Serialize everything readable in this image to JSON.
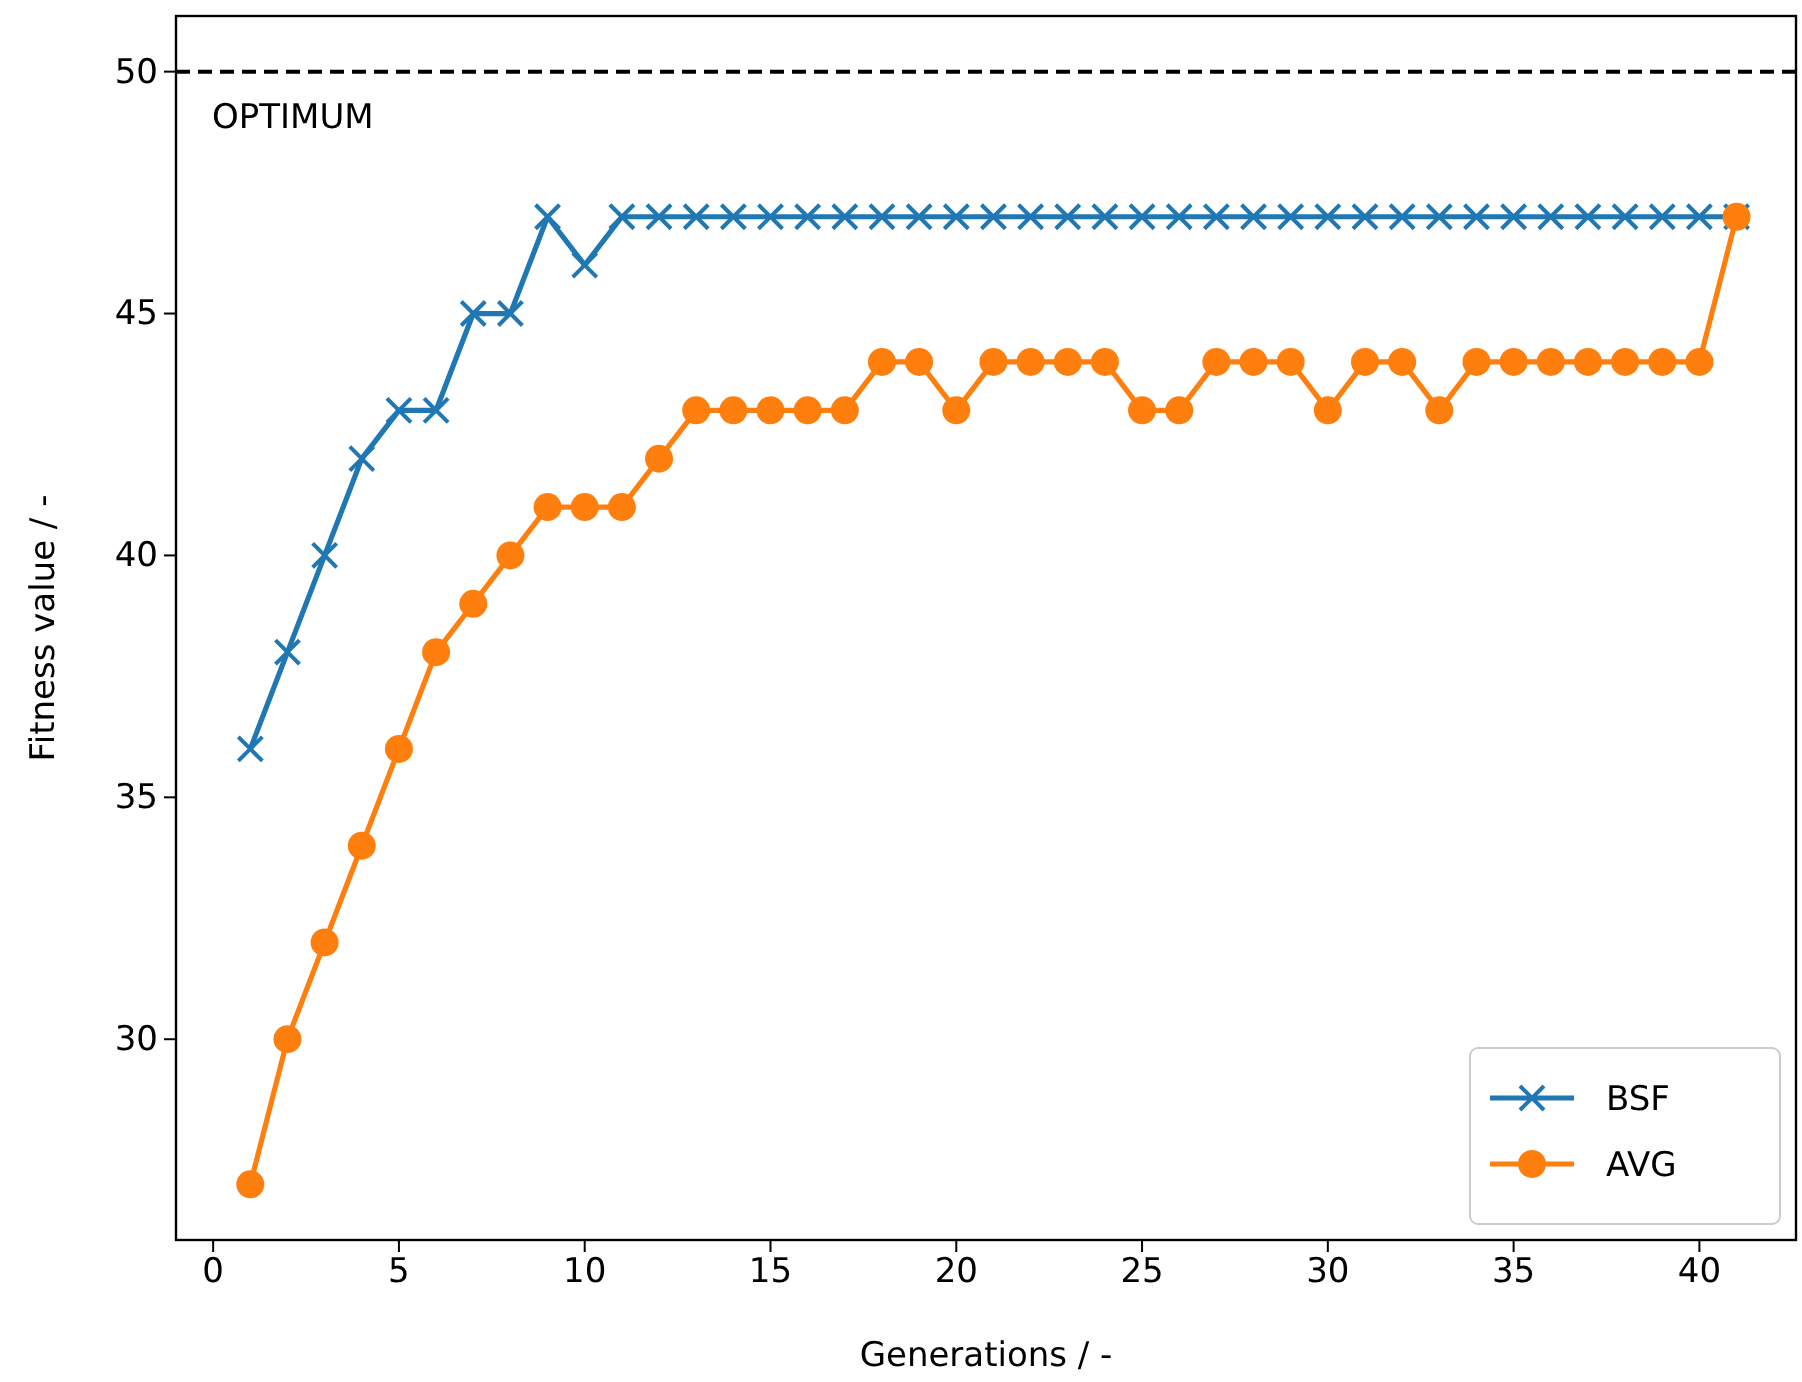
{
  "chart_data": {
    "type": "line",
    "xlabel": "Generations / -",
    "ylabel": "Fitness value / -",
    "x": [
      1,
      2,
      3,
      4,
      5,
      6,
      7,
      8,
      9,
      10,
      11,
      12,
      13,
      14,
      15,
      16,
      17,
      18,
      19,
      20,
      21,
      22,
      23,
      24,
      25,
      26,
      27,
      28,
      29,
      30,
      31,
      32,
      33,
      34,
      35,
      36,
      37,
      38,
      39,
      40,
      41
    ],
    "series": [
      {
        "name": "BSF",
        "color": "#1f77b4",
        "marker": "cross",
        "values": [
          36,
          38,
          40,
          42,
          43,
          43,
          45,
          45,
          47,
          46,
          47,
          47,
          47,
          47,
          47,
          47,
          47,
          47,
          47,
          47,
          47,
          47,
          47,
          47,
          47,
          47,
          47,
          47,
          47,
          47,
          47,
          47,
          47,
          47,
          47,
          47,
          47,
          47,
          47,
          47,
          47
        ]
      },
      {
        "name": "AVG",
        "color": "#ff7f0e",
        "marker": "circle",
        "values": [
          27,
          30,
          32,
          34,
          36,
          38,
          39,
          40,
          41,
          41,
          41,
          42,
          43,
          43,
          43,
          43,
          43,
          44,
          44,
          43,
          44,
          44,
          44,
          44,
          43,
          43,
          44,
          44,
          44,
          43,
          44,
          44,
          43,
          44,
          44,
          44,
          44,
          44,
          44,
          44,
          47
        ]
      }
    ],
    "xlim": [
      -1,
      42.6
    ],
    "xticks": [
      0,
      5,
      10,
      15,
      20,
      25,
      30,
      35,
      40
    ],
    "ylim": [
      25.85,
      51.15
    ],
    "yticks": [
      30,
      35,
      40,
      45,
      50
    ],
    "ref_lines": [
      {
        "axis": "y",
        "value": 50,
        "label": "OPTIMUM",
        "color": "#000000",
        "line_style": "dashed"
      }
    ],
    "legend": "bottom right",
    "grid": false,
    "line_style": "solid"
  }
}
